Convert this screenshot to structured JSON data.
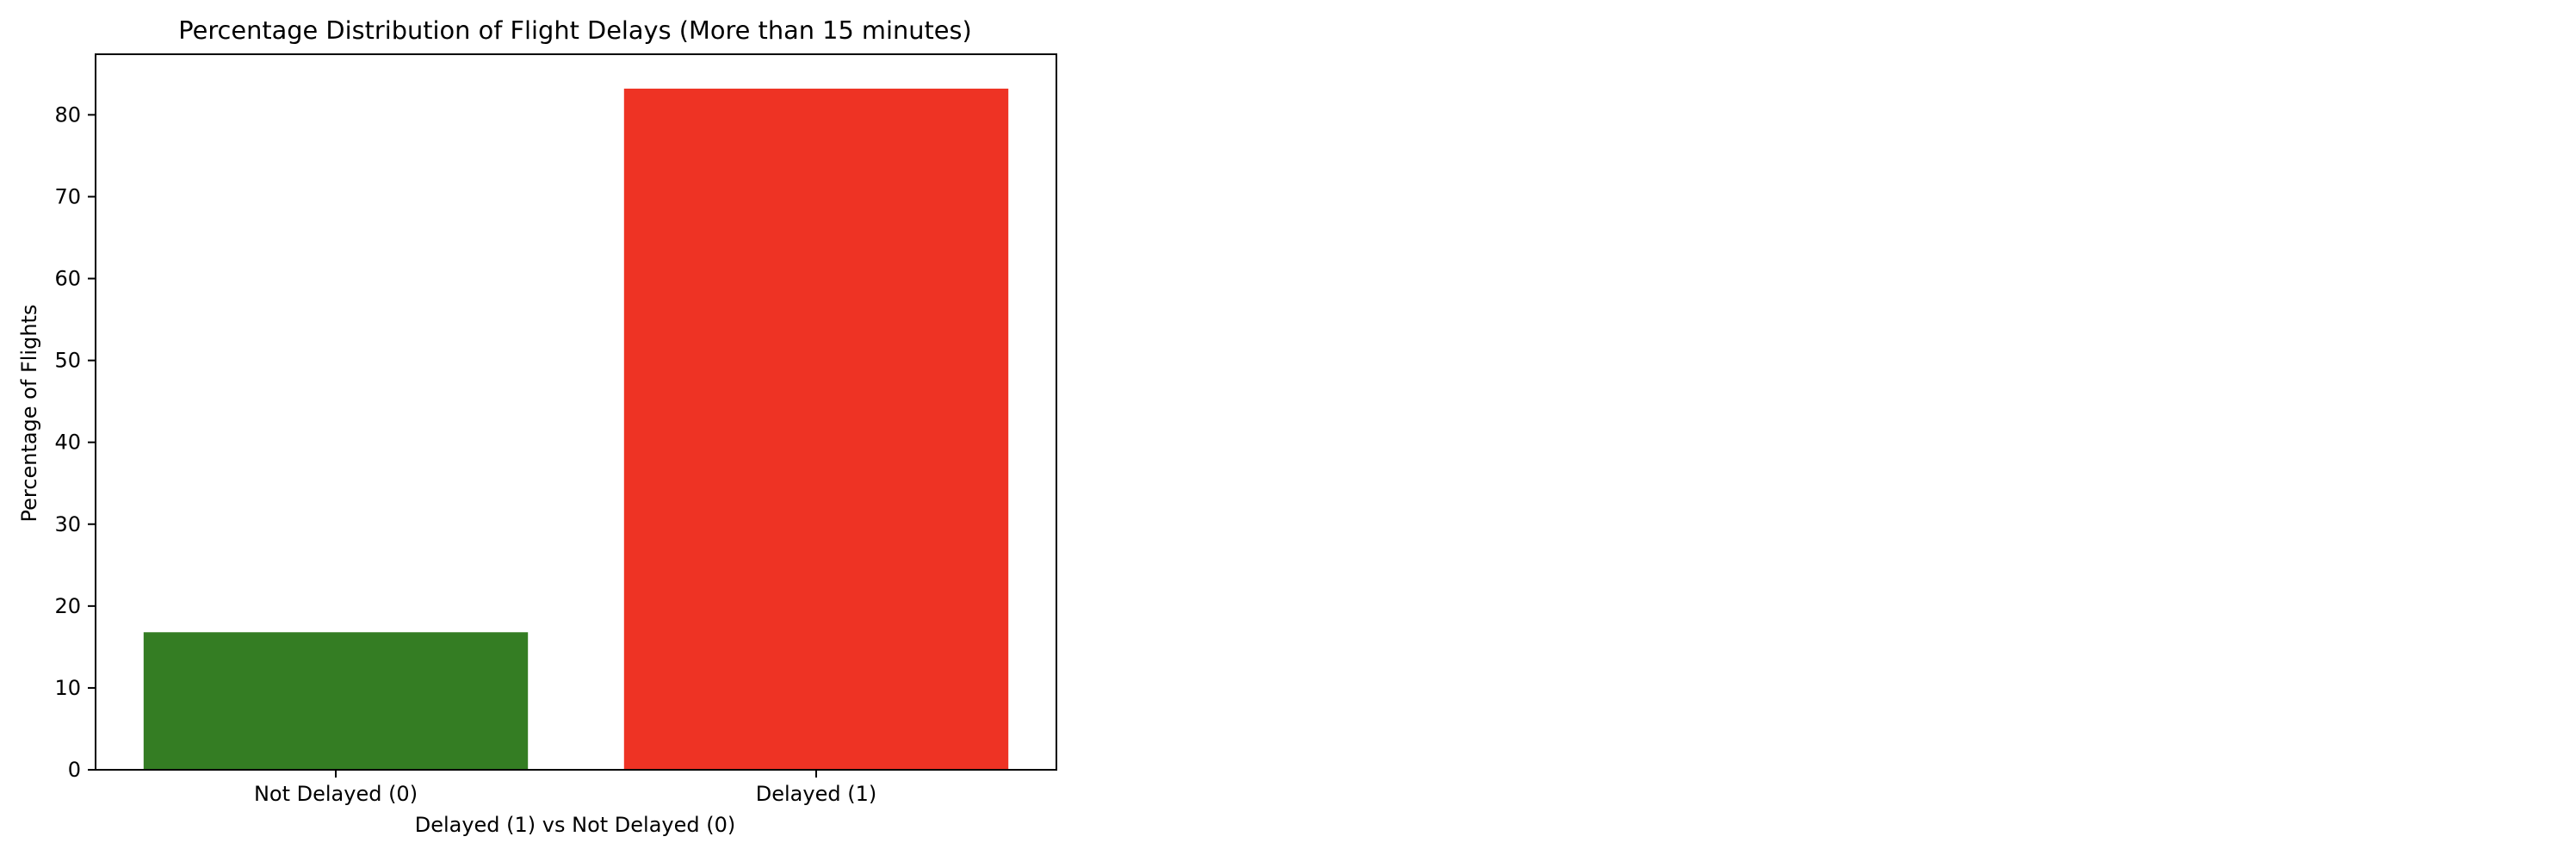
{
  "chart_data": {
    "type": "bar",
    "title": "Percentage Distribution of Flight Delays (More than 15 minutes)",
    "xlabel": "Delayed (1) vs Not Delayed (0)",
    "ylabel": "Percentage of Flights",
    "categories": [
      "Not Delayed (0)",
      "Delayed (1)"
    ],
    "values": [
      16.8,
      83.2
    ],
    "colors": [
      "#347d23",
      "#ee3324"
    ],
    "ylim": [
      0,
      87.4
    ],
    "yticks": [
      0,
      10,
      20,
      30,
      40,
      50,
      60,
      70,
      80
    ],
    "grid": false,
    "legend": "none"
  }
}
